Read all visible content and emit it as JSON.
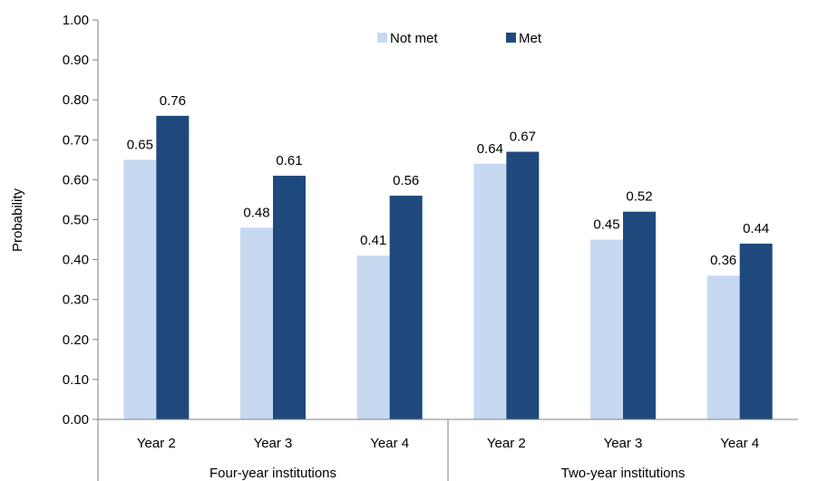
{
  "chart_data": {
    "type": "bar",
    "title": "",
    "ylabel": "Probability",
    "xlabel": "",
    "ylim": [
      0,
      1.0
    ],
    "ytick_step": 0.1,
    "ytick_labels": [
      "0.00",
      "0.10",
      "0.20",
      "0.30",
      "0.40",
      "0.50",
      "0.60",
      "0.70",
      "0.80",
      "0.90",
      "1.00"
    ],
    "grid": false,
    "legend_position": "top",
    "groups": [
      {
        "label": "Four-year institutions",
        "categories": [
          "Year 2",
          "Year 3",
          "Year 4"
        ]
      },
      {
        "label": "Two-year institutions",
        "categories": [
          "Year 2",
          "Year 3",
          "Year 4"
        ]
      }
    ],
    "categories": [
      "Year 2",
      "Year 3",
      "Year 4",
      "Year 2",
      "Year 3",
      "Year 4"
    ],
    "series": [
      {
        "name": "Not met",
        "color": "#c6d9f1",
        "values": [
          0.65,
          0.48,
          0.41,
          0.64,
          0.45,
          0.36
        ],
        "labels": [
          "0.65",
          "0.48",
          "0.41",
          "0.64",
          "0.45",
          "0.36"
        ]
      },
      {
        "name": "Met",
        "color": "#1f497d",
        "values": [
          0.76,
          0.61,
          0.56,
          0.67,
          0.52,
          0.44
        ],
        "labels": [
          "0.76",
          "0.61",
          "0.56",
          "0.67",
          "0.52",
          "0.44"
        ]
      }
    ]
  }
}
